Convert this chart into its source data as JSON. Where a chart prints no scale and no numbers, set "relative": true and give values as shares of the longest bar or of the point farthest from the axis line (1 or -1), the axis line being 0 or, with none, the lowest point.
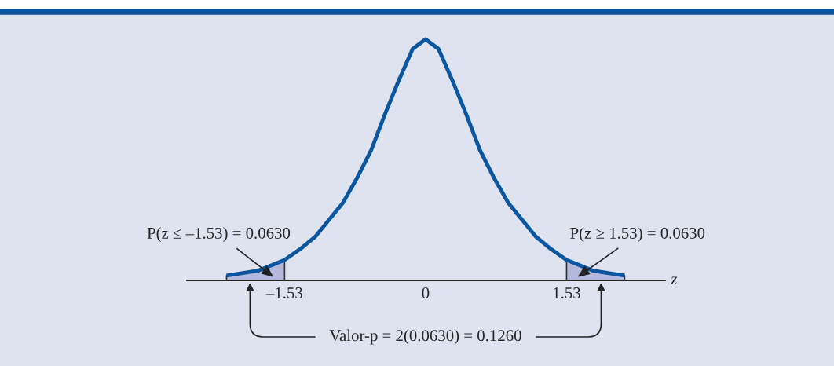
{
  "chart_data": {
    "type": "line",
    "relative": true,
    "xlabel": "z",
    "xlim": [
      -2.59,
      2.6
    ],
    "xticks": [
      {
        "value": -1.53,
        "label": "–1.53"
      },
      0,
      1.53
    ],
    "series": [
      {
        "type": "area",
        "color": "#b3b8dc",
        "x": [
          -2.16,
          -1.82,
          -1.53
        ],
        "values": [
          0.02,
          0.04,
          0.085
        ]
      },
      {
        "type": "area",
        "color": "#b3b8dc",
        "x": [
          1.53,
          1.82,
          2.16
        ],
        "values": [
          0.085,
          0.04,
          0.02
        ]
      },
      {
        "color": "#0a56a0",
        "x": [
          -2.16,
          -1.82,
          -1.53,
          -1.36,
          -1.2,
          -1.05,
          -0.9,
          -0.75,
          -0.59,
          -0.44,
          -0.29,
          -0.14,
          0,
          0.14,
          0.29,
          0.44,
          0.59,
          0.75,
          0.9,
          1.05,
          1.2,
          1.36,
          1.53,
          1.82,
          2.16
        ],
        "values": [
          0.02,
          0.04,
          0.085,
          0.13,
          0.18,
          0.25,
          0.32,
          0.42,
          0.54,
          0.69,
          0.83,
          0.96,
          1,
          0.96,
          0.83,
          0.69,
          0.54,
          0.42,
          0.32,
          0.25,
          0.18,
          0.13,
          0.085,
          0.04,
          0.02
        ]
      }
    ],
    "annotations": [
      "P(z ≤ –1.53) = 0.0630",
      "P(z ≥ 1.53) = 0.0630",
      "Valor-p = 2(0.0630) = 0.1260"
    ]
  }
}
